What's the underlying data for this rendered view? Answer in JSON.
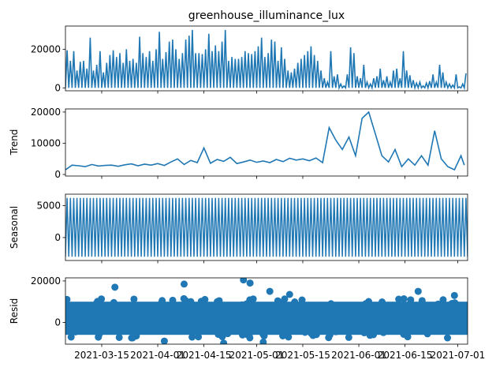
{
  "chart_data": [
    {
      "type": "line",
      "title": "greenhouse_illuminance_lux",
      "ylabel": "",
      "ylim": [
        -1500,
        32000
      ],
      "yticks": [
        0,
        20000
      ],
      "xlim": [
        "2021-03-04",
        "2021-07-04"
      ],
      "color": "#1f77b4",
      "series_note": "observed",
      "x": [
        "2021-03-04",
        "2021-03-05",
        "2021-03-06",
        "2021-03-07",
        "2021-03-08",
        "2021-03-09",
        "2021-03-10",
        "2021-03-11",
        "2021-03-12",
        "2021-03-13",
        "2021-03-14",
        "2021-03-15",
        "2021-03-16",
        "2021-03-17",
        "2021-03-18",
        "2021-03-19",
        "2021-03-20",
        "2021-03-21",
        "2021-03-22",
        "2021-03-23",
        "2021-03-24",
        "2021-03-25",
        "2021-03-26",
        "2021-03-27",
        "2021-03-28",
        "2021-03-29",
        "2021-03-30",
        "2021-03-31",
        "2021-04-01",
        "2021-04-02",
        "2021-04-03",
        "2021-04-04",
        "2021-04-05",
        "2021-04-06",
        "2021-04-07",
        "2021-04-08",
        "2021-04-09",
        "2021-04-10",
        "2021-04-11",
        "2021-04-12",
        "2021-04-13",
        "2021-04-14",
        "2021-04-15",
        "2021-04-16",
        "2021-04-17",
        "2021-04-18",
        "2021-04-19",
        "2021-04-20",
        "2021-04-21",
        "2021-04-22",
        "2021-04-23",
        "2021-04-24",
        "2021-04-25",
        "2021-04-26",
        "2021-04-27",
        "2021-04-28",
        "2021-04-29",
        "2021-04-30",
        "2021-05-01",
        "2021-05-02",
        "2021-05-03",
        "2021-05-04",
        "2021-05-05",
        "2021-05-06",
        "2021-05-07",
        "2021-05-08",
        "2021-05-09",
        "2021-05-10",
        "2021-05-11",
        "2021-05-12",
        "2021-05-13",
        "2021-05-14",
        "2021-05-15",
        "2021-05-16",
        "2021-05-17",
        "2021-05-18",
        "2021-05-19",
        "2021-05-20",
        "2021-05-21",
        "2021-05-22",
        "2021-05-23",
        "2021-05-24",
        "2021-05-25",
        "2021-05-26",
        "2021-05-27",
        "2021-05-28",
        "2021-05-29",
        "2021-05-30",
        "2021-05-31",
        "2021-06-01",
        "2021-06-02",
        "2021-06-03",
        "2021-06-04",
        "2021-06-05",
        "2021-06-06",
        "2021-06-07",
        "2021-06-08",
        "2021-06-09",
        "2021-06-10",
        "2021-06-11",
        "2021-06-12",
        "2021-06-13",
        "2021-06-14",
        "2021-06-15",
        "2021-06-16",
        "2021-06-17",
        "2021-06-18",
        "2021-06-19",
        "2021-06-20",
        "2021-06-21",
        "2021-06-22",
        "2021-06-23",
        "2021-06-24",
        "2021-06-25",
        "2021-06-26",
        "2021-06-27",
        "2021-06-28",
        "2021-06-29",
        "2021-06-30",
        "2021-07-01",
        "2021-07-02",
        "2021-07-03"
      ],
      "y": [
        19500,
        14000,
        19000,
        9000,
        13500,
        14000,
        10000,
        26000,
        9000,
        12000,
        19000,
        8000,
        13000,
        17000,
        19500,
        16000,
        18000,
        13000,
        20000,
        14000,
        15000,
        13000,
        26500,
        18000,
        16000,
        19000,
        14000,
        20000,
        29000,
        15000,
        18500,
        24000,
        25000,
        20000,
        15000,
        18000,
        25000,
        27000,
        30000,
        18000,
        18000,
        17500,
        20000,
        28000,
        19000,
        22000,
        19000,
        24000,
        30000,
        14000,
        16000,
        15000,
        15000,
        16000,
        19000,
        18000,
        17500,
        19000,
        21500,
        26000,
        16000,
        18000,
        25000,
        24000,
        14000,
        21000,
        15000,
        9000,
        8000,
        10000,
        13000,
        15000,
        17000,
        19000,
        21500,
        17000,
        14000,
        9000,
        5000,
        3000,
        19000,
        6000,
        7000,
        2000,
        1000,
        7000,
        21000,
        18000,
        6000,
        5000,
        12000,
        3000,
        2000,
        5000,
        6000,
        10000,
        4000,
        6000,
        3000,
        9000,
        10000,
        5000,
        19000,
        9000,
        6500,
        4000,
        2500,
        3000,
        1000,
        2500,
        3500,
        7000,
        3000,
        12000,
        8000,
        3000,
        2000,
        1500,
        7000,
        500,
        2000,
        7500
      ],
      "baseline": 0
    },
    {
      "type": "line",
      "title": "",
      "ylabel": "Trend",
      "ylim": [
        -500,
        21000
      ],
      "yticks": [
        0,
        10000,
        20000
      ],
      "xlim": [
        "2021-03-04",
        "2021-07-04"
      ],
      "color": "#1f77b4",
      "x": [
        "2021-03-04",
        "2021-03-06",
        "2021-03-08",
        "2021-03-10",
        "2021-03-12",
        "2021-03-14",
        "2021-03-16",
        "2021-03-18",
        "2021-03-20",
        "2021-03-22",
        "2021-03-24",
        "2021-03-26",
        "2021-03-28",
        "2021-03-30",
        "2021-04-01",
        "2021-04-03",
        "2021-04-05",
        "2021-04-07",
        "2021-04-09",
        "2021-04-11",
        "2021-04-13",
        "2021-04-15",
        "2021-04-17",
        "2021-04-19",
        "2021-04-21",
        "2021-04-23",
        "2021-04-25",
        "2021-04-27",
        "2021-04-29",
        "2021-05-01",
        "2021-05-03",
        "2021-05-05",
        "2021-05-07",
        "2021-05-09",
        "2021-05-11",
        "2021-05-13",
        "2021-05-15",
        "2021-05-17",
        "2021-05-19",
        "2021-05-21",
        "2021-05-23",
        "2021-05-25",
        "2021-05-27",
        "2021-05-29",
        "2021-05-31",
        "2021-06-02",
        "2021-06-04",
        "2021-06-06",
        "2021-06-08",
        "2021-06-10",
        "2021-06-12",
        "2021-06-14",
        "2021-06-16",
        "2021-06-18",
        "2021-06-20",
        "2021-06-22",
        "2021-06-24",
        "2021-06-26",
        "2021-06-28",
        "2021-06-30",
        "2021-07-02",
        "2021-07-03"
      ],
      "y": [
        1500,
        3000,
        2800,
        2500,
        3200,
        2700,
        2900,
        3000,
        2600,
        3100,
        3400,
        2800,
        3300,
        3000,
        3500,
        2900,
        4000,
        5000,
        3200,
        4500,
        3800,
        8500,
        3600,
        4800,
        4200,
        5500,
        3500,
        4000,
        4600,
        3900,
        4300,
        3800,
        4800,
        4100,
        5200,
        4600,
        5000,
        4400,
        5300,
        3800,
        15000,
        11000,
        8000,
        12000,
        6000,
        18000,
        20000,
        13000,
        6000,
        4000,
        8000,
        2500,
        5000,
        3000,
        6000,
        3000,
        14000,
        5000,
        2500,
        1500,
        6000,
        3000
      ]
    },
    {
      "type": "line",
      "title": "",
      "ylabel": "Seasonal",
      "ylim": [
        -3600,
        6800
      ],
      "yticks": [
        0,
        5000
      ],
      "xlim": [
        "2021-03-04",
        "2021-07-04"
      ],
      "color": "#1f77b4",
      "period_days": 1,
      "amplitude_high": 6200,
      "amplitude_low": -3000
    },
    {
      "type": "scatter",
      "title": "",
      "ylabel": "Resid",
      "ylim": [
        -10500,
        21500
      ],
      "yticks": [
        0,
        20000
      ],
      "xlim": [
        "2021-03-04",
        "2021-07-04"
      ],
      "xticks": [
        "2021-03-15",
        "2021-04-01",
        "2021-04-15",
        "2021-05-01",
        "2021-05-15",
        "2021-06-01",
        "2021-06-15",
        "2021-07-01"
      ],
      "color": "#1f77b4",
      "band_upper": 10000,
      "band_lower": -6000,
      "outliers": [
        {
          "x": "2021-03-19",
          "y": 17000
        },
        {
          "x": "2021-04-09",
          "y": 18500
        },
        {
          "x": "2021-04-27",
          "y": 20500
        },
        {
          "x": "2021-04-29",
          "y": 19000
        },
        {
          "x": "2021-05-05",
          "y": 15000
        },
        {
          "x": "2021-05-11",
          "y": 13500
        },
        {
          "x": "2021-04-03",
          "y": -9000
        },
        {
          "x": "2021-04-21",
          "y": -10000
        },
        {
          "x": "2021-05-03",
          "y": -9500
        },
        {
          "x": "2021-06-19",
          "y": 15000
        },
        {
          "x": "2021-06-30",
          "y": 13000
        }
      ]
    }
  ]
}
